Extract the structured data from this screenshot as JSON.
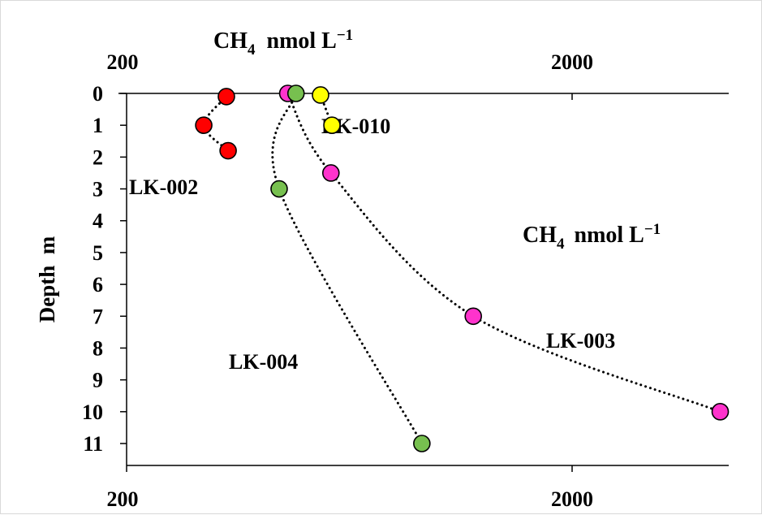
{
  "chart_data": {
    "type": "scatter",
    "x_axis": {
      "scale": "log",
      "range": [
        200,
        5000
      ],
      "ticks_top": [
        "200",
        "2000"
      ],
      "ticks_bottom": [
        "200",
        "2000"
      ]
    },
    "y_axis": {
      "label": "Depth  m",
      "range": [
        0,
        11
      ],
      "inverted": true,
      "ticks": [
        "0",
        "1",
        "2",
        "3",
        "4",
        "5",
        "6",
        "7",
        "8",
        "9",
        "10",
        "11"
      ]
    },
    "titles": {
      "top_main": "CH",
      "top_sub": "4",
      "top_unit": "nmol L",
      "top_sup": "−1",
      "inner_main": "CH",
      "inner_sub": "4",
      "inner_unit": "nmol L",
      "inner_sup": "−1"
    },
    "series": [
      {
        "name": "LK-002",
        "color": "#ff0000",
        "points": [
          {
            "x": 335,
            "y": 0.1
          },
          {
            "x": 298,
            "y": 1.0
          },
          {
            "x": 338,
            "y": 1.8
          }
        ]
      },
      {
        "name": "LK-010",
        "color": "#ffff00",
        "points": [
          {
            "x": 545,
            "y": 0.05
          },
          {
            "x": 578,
            "y": 1.0
          }
        ]
      },
      {
        "name": "LK-003",
        "color": "#ff33cc",
        "points": [
          {
            "x": 460,
            "y": 0.0
          },
          {
            "x": 575,
            "y": 2.5
          },
          {
            "x": 1200,
            "y": 7.0
          },
          {
            "x": 4300,
            "y": 10.0
          }
        ]
      },
      {
        "name": "LK-004",
        "color": "#77c04f",
        "points": [
          {
            "x": 480,
            "y": 0.0
          },
          {
            "x": 440,
            "y": 3.0
          },
          {
            "x": 920,
            "y": 11.0
          }
        ]
      }
    ],
    "series_labels": [
      "LK-002",
      "LK-010",
      "LK-003",
      "LK-004"
    ],
    "grid": false,
    "legend": "none"
  }
}
